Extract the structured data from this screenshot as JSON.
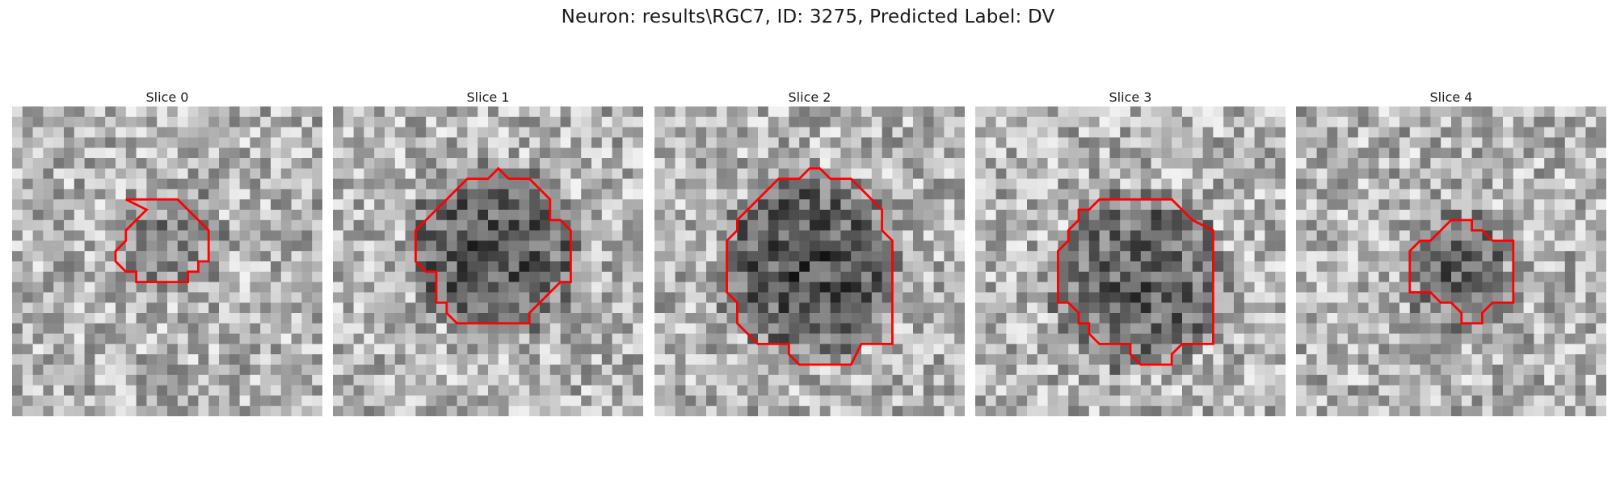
{
  "figure": {
    "title": "Neuron: results\\RGC7, ID: 3275, Predicted Label: DV"
  },
  "style": {
    "contour_color": "#ff0000"
  },
  "slices": [
    {
      "title": "Slice 0",
      "image": "grayscale-microscopy-slice",
      "darkness": 0.35
    },
    {
      "title": "Slice 1",
      "image": "grayscale-microscopy-slice",
      "darkness": 0.75
    },
    {
      "title": "Slice 2",
      "image": "grayscale-microscopy-slice",
      "darkness": 0.8
    },
    {
      "title": "Slice 3",
      "image": "grayscale-microscopy-slice",
      "darkness": 0.7
    },
    {
      "title": "Slice 4",
      "image": "grayscale-microscopy-slice",
      "darkness": 0.6
    }
  ]
}
